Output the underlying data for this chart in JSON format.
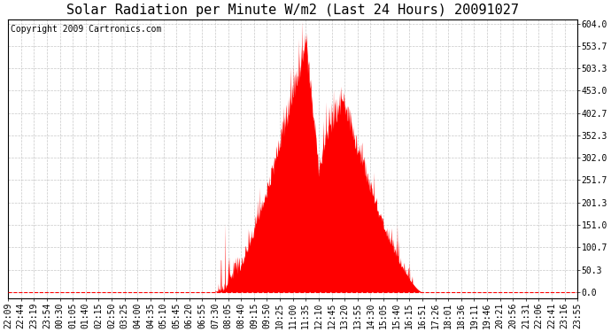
{
  "title": "Solar Radiation per Minute W/m2 (Last 24 Hours) 20091027",
  "copyright": "Copyright 2009 Cartronics.com",
  "background_color": "#ffffff",
  "plot_bg_color": "#ffffff",
  "grid_color": "#c8c8c8",
  "fill_color": "#ff0000",
  "line_color": "#ff0000",
  "dashed_line_color": "#ff0000",
  "ymin": 0.0,
  "ymax": 604.0,
  "yticks": [
    0.0,
    50.3,
    100.7,
    151.0,
    201.3,
    251.7,
    302.0,
    352.3,
    402.7,
    453.0,
    503.3,
    553.7,
    604.0
  ],
  "x_labels": [
    "22:09",
    "22:44",
    "23:19",
    "23:54",
    "00:30",
    "01:05",
    "01:40",
    "02:15",
    "02:50",
    "03:25",
    "04:00",
    "04:35",
    "05:10",
    "05:45",
    "06:20",
    "06:55",
    "07:30",
    "08:05",
    "08:40",
    "09:15",
    "09:50",
    "10:25",
    "11:00",
    "11:35",
    "12:10",
    "12:45",
    "13:20",
    "13:55",
    "14:30",
    "15:05",
    "15:40",
    "16:15",
    "16:51",
    "17:26",
    "18:01",
    "18:36",
    "19:11",
    "19:46",
    "20:21",
    "20:56",
    "21:31",
    "22:06",
    "22:41",
    "23:16",
    "23:55"
  ],
  "num_points": 1440,
  "title_fontsize": 11,
  "copyright_fontsize": 7,
  "tick_fontsize": 7
}
